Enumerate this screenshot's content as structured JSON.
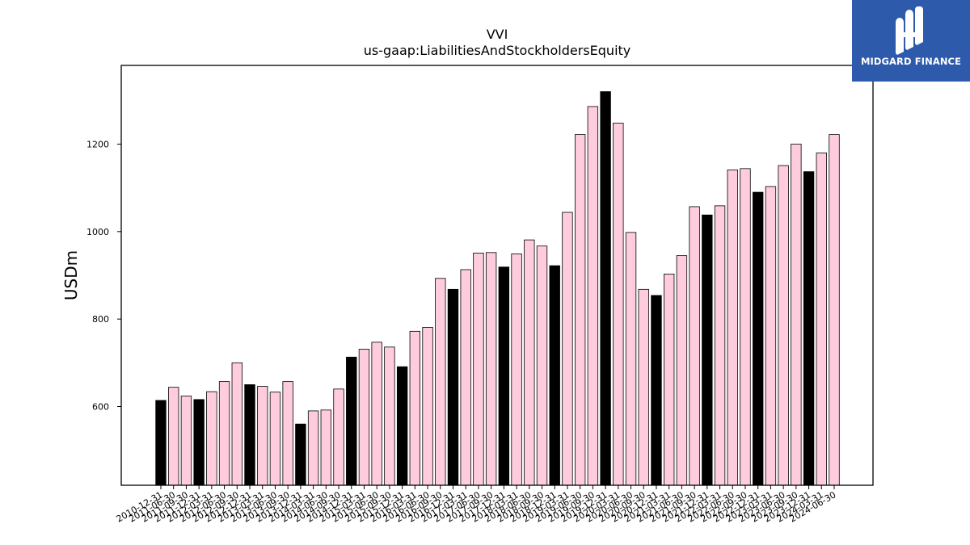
{
  "logo": {
    "text": "MIDGARD FINANCE"
  },
  "chart_data": {
    "type": "bar",
    "title": "VVI",
    "subtitle": "us-gaap:LiabilitiesAndStockholdersEquity",
    "xlabel": "",
    "ylabel": "USDm",
    "ylim": [
      420,
      1380
    ],
    "yticks": [
      600,
      800,
      1000,
      1200
    ],
    "grid": false,
    "colors": {
      "annual": "#000000",
      "interim": "#ffccdd",
      "edge": "#000000"
    },
    "categories": [
      "2010-12-31",
      "2011-06-30",
      "2011-09-30",
      "2011-12-31",
      "2012-03-31",
      "2012-06-30",
      "2012-09-30",
      "2012-12-31",
      "2013-03-31",
      "2013-06-30",
      "2013-09-30",
      "2013-12-31",
      "2014-03-31",
      "2014-06-30",
      "2014-09-30",
      "2014-12-31",
      "2015-03-31",
      "2015-06-30",
      "2015-09-30",
      "2015-12-31",
      "2016-03-31",
      "2016-06-30",
      "2016-09-30",
      "2016-12-31",
      "2017-03-31",
      "2017-06-30",
      "2017-09-30",
      "2017-12-31",
      "2018-03-31",
      "2018-06-30",
      "2018-09-30",
      "2018-12-31",
      "2019-03-31",
      "2019-06-30",
      "2019-09-30",
      "2019-12-31",
      "2020-03-31",
      "2020-06-30",
      "2020-09-30",
      "2020-12-31",
      "2021-03-31",
      "2021-06-30",
      "2021-09-30",
      "2021-12-31",
      "2022-03-31",
      "2022-06-30",
      "2022-09-30",
      "2022-12-31",
      "2023-03-31",
      "2023-06-30",
      "2023-09-30",
      "2023-12-31",
      "2024-03-31",
      "2024-06-30"
    ],
    "values": [
      614,
      644,
      624,
      616,
      634,
      657,
      700,
      650,
      646,
      633,
      657,
      560,
      590,
      592,
      640,
      713,
      731,
      747,
      736,
      691,
      772,
      781,
      893,
      868,
      913,
      951,
      952,
      919,
      949,
      981,
      967,
      922,
      1044,
      1222,
      1286,
      1320,
      1248,
      998,
      868,
      854,
      903,
      945,
      1057,
      1038,
      1059,
      1141,
      1144,
      1090,
      1103,
      1151,
      1200,
      1137,
      1180,
      1222
    ],
    "annual": [
      true,
      false,
      false,
      true,
      false,
      false,
      false,
      true,
      false,
      false,
      false,
      true,
      false,
      false,
      false,
      true,
      false,
      false,
      false,
      true,
      false,
      false,
      false,
      true,
      false,
      false,
      false,
      true,
      false,
      false,
      false,
      true,
      false,
      false,
      false,
      true,
      false,
      false,
      false,
      true,
      false,
      false,
      false,
      true,
      false,
      false,
      false,
      true,
      false,
      false,
      false,
      true,
      false,
      false
    ]
  }
}
